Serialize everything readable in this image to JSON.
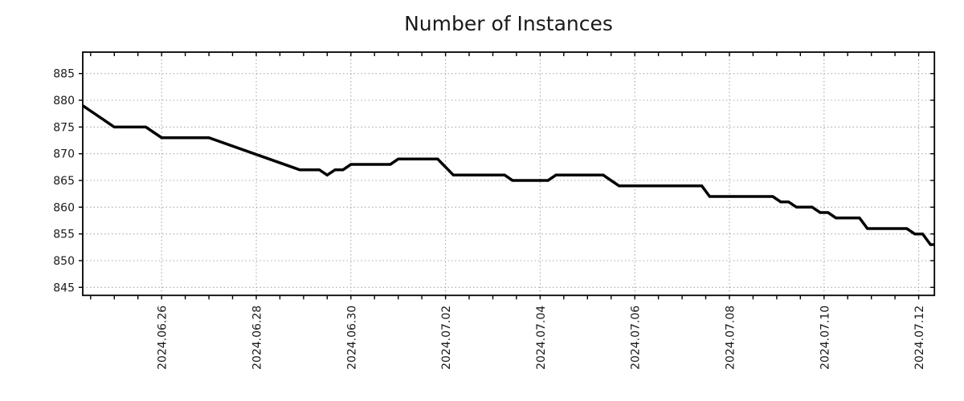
{
  "title": "Number of Instances",
  "style": {
    "background": "#ffffff",
    "line_color": "#000000",
    "grid_color": "#a9a9a9",
    "axis_color": "#000000",
    "text_color": "#1a1a1a"
  },
  "chart_data": {
    "type": "line",
    "title": "Number of Instances",
    "xlabel": "",
    "ylabel": "",
    "legend": null,
    "grid": {
      "style": "dotted",
      "on": true,
      "major_only": true
    },
    "x_start_date": "2024-06-24",
    "xlim_days_from_start": [
      0.33333,
      18.33333
    ],
    "ylim": [
      843.5,
      889.0
    ],
    "y_ticks": [
      845,
      850,
      855,
      860,
      865,
      870,
      875,
      880,
      885
    ],
    "x_major_ticks": [
      {
        "label": "2024.06.26",
        "day": 2
      },
      {
        "label": "2024.06.28",
        "day": 4
      },
      {
        "label": "2024.06.30",
        "day": 6
      },
      {
        "label": "2024.07.02",
        "day": 8
      },
      {
        "label": "2024.07.04",
        "day": 10
      },
      {
        "label": "2024.07.06",
        "day": 12
      },
      {
        "label": "2024.07.08",
        "day": 14
      },
      {
        "label": "2024.07.10",
        "day": 16
      },
      {
        "label": "2024.07.12",
        "day": 18
      }
    ],
    "x_minor_tick_interval_days": 0.5,
    "series": [
      {
        "name": "instances",
        "color": "#000000",
        "points": [
          [
            "2024-06-24 08:00",
            879
          ],
          [
            "2024-06-25 00:00",
            875
          ],
          [
            "2024-06-25 16:00",
            875
          ],
          [
            "2024-06-26 00:00",
            873
          ],
          [
            "2024-06-27 00:00",
            873
          ],
          [
            "2024-06-28 22:00",
            867
          ],
          [
            "2024-06-29 08:00",
            867
          ],
          [
            "2024-06-29 12:00",
            866
          ],
          [
            "2024-06-29 16:00",
            867
          ],
          [
            "2024-06-29 20:00",
            867
          ],
          [
            "2024-06-30 00:00",
            868
          ],
          [
            "2024-06-30 20:00",
            868
          ],
          [
            "2024-07-01 00:00",
            869
          ],
          [
            "2024-07-01 20:00",
            869
          ],
          [
            "2024-07-02 04:00",
            866
          ],
          [
            "2024-07-03 06:00",
            866
          ],
          [
            "2024-07-03 10:00",
            865
          ],
          [
            "2024-07-04 04:00",
            865
          ],
          [
            "2024-07-04 08:00",
            866
          ],
          [
            "2024-07-05 08:00",
            866
          ],
          [
            "2024-07-05 16:00",
            864
          ],
          [
            "2024-07-07 10:00",
            864
          ],
          [
            "2024-07-07 14:00",
            862
          ],
          [
            "2024-07-08 22:00",
            862
          ],
          [
            "2024-07-09 02:00",
            861
          ],
          [
            "2024-07-09 06:00",
            861
          ],
          [
            "2024-07-09 10:00",
            860
          ],
          [
            "2024-07-09 18:00",
            860
          ],
          [
            "2024-07-09 22:00",
            859
          ],
          [
            "2024-07-10 02:00",
            859
          ],
          [
            "2024-07-10 06:00",
            858
          ],
          [
            "2024-07-10 18:00",
            858
          ],
          [
            "2024-07-10 22:00",
            856
          ],
          [
            "2024-07-11 18:00",
            856
          ],
          [
            "2024-07-11 22:00",
            855
          ],
          [
            "2024-07-12 02:00",
            855
          ],
          [
            "2024-07-12 06:00",
            853
          ],
          [
            "2024-07-12 08:00",
            853
          ]
        ]
      }
    ]
  }
}
